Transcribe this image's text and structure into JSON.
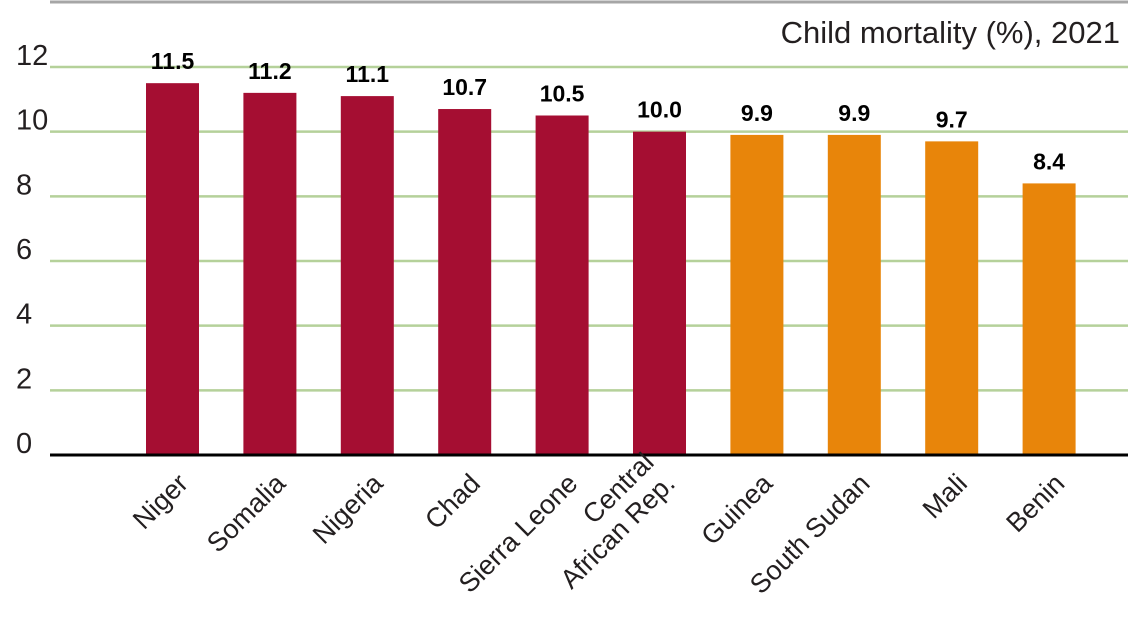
{
  "chart_data": {
    "type": "bar",
    "title": "Child mortality (%), 2021",
    "xlabel": "",
    "ylabel": "",
    "ylim": [
      0,
      12
    ],
    "yticks": [
      0,
      2,
      4,
      6,
      8,
      10,
      12
    ],
    "grid": true,
    "categories": [
      [
        "Niger"
      ],
      [
        "Somalia"
      ],
      [
        "Nigeria"
      ],
      [
        "Chad"
      ],
      [
        "Sierra Leone"
      ],
      [
        "Central",
        "African Rep."
      ],
      [
        "Guinea"
      ],
      [
        "South Sudan"
      ],
      [
        "Mali"
      ],
      [
        "Benin"
      ]
    ],
    "values": [
      11.5,
      11.2,
      11.1,
      10.7,
      10.5,
      10.0,
      9.9,
      9.9,
      9.7,
      8.4
    ],
    "value_labels": [
      "11.5",
      "11.2",
      "11.1",
      "10.7",
      "10.5",
      "10.0",
      "9.9",
      "9.9",
      "9.7",
      "8.4"
    ],
    "bar_colors": [
      "#a50e32",
      "#a50e32",
      "#a50e32",
      "#a50e32",
      "#a50e32",
      "#a50e32",
      "#e8850a",
      "#e8850a",
      "#e8850a",
      "#e8850a"
    ],
    "grid_color": "#b5d19a",
    "axis_color": "#000000",
    "top_rule_color": "#a6a6a6"
  }
}
